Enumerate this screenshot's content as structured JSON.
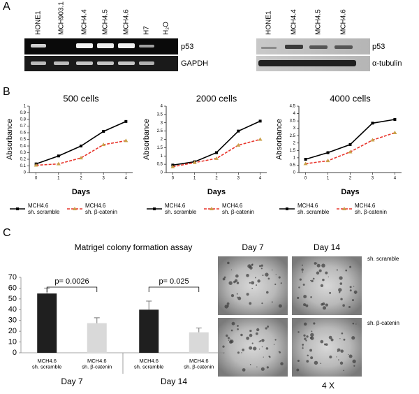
{
  "panel_labels": {
    "a": "A",
    "b": "B",
    "c": "C"
  },
  "gels": {
    "left": {
      "lanes": [
        "HONE1",
        "MCH903.1",
        "MCH4.4",
        "MCH4.5",
        "MCH4.6",
        "H7",
        "H₂O"
      ],
      "rows": [
        "p53",
        "GAPDH"
      ]
    },
    "right": {
      "lanes": [
        "HONE1",
        "MCH4.4",
        "MCH4.5",
        "MCH4.6"
      ],
      "rows": [
        "p53",
        "α-tubulin"
      ]
    }
  },
  "chart_data": [
    {
      "type": "line",
      "title": "500 cells",
      "xlabel": "Days",
      "ylabel": "Absorbance",
      "x": [
        0,
        1,
        2,
        3,
        4
      ],
      "xlim": [
        -0.3,
        4.3
      ],
      "xticks": [
        0,
        1,
        2,
        3,
        4
      ],
      "ylim": [
        0,
        1
      ],
      "yticks": [
        0,
        0.1,
        0.2,
        0.3,
        0.4,
        0.5,
        0.6,
        0.7,
        0.8,
        0.9,
        1
      ],
      "series": [
        {
          "name": "MCH4.6\nsh. scramble",
          "color": "#000000",
          "marker": "square",
          "marker_color": "#000000",
          "dash": false,
          "values": [
            0.13,
            0.25,
            0.4,
            0.62,
            0.77
          ]
        },
        {
          "name": "MCH4.6\nsh. β-catenin",
          "color": "#e8332a",
          "marker": "triangle",
          "marker_color": "#c9a24a",
          "dash": true,
          "values": [
            0.11,
            0.13,
            0.22,
            0.42,
            0.48
          ]
        }
      ]
    },
    {
      "type": "line",
      "title": "2000 cells",
      "xlabel": "Days",
      "ylabel": "Absorbance",
      "x": [
        0,
        1,
        2,
        3,
        4
      ],
      "xlim": [
        -0.3,
        4.3
      ],
      "xticks": [
        0,
        1,
        2,
        3,
        4
      ],
      "ylim": [
        0,
        4
      ],
      "yticks": [
        0,
        0.5,
        1,
        1.5,
        2,
        2.5,
        3,
        3.5,
        4
      ],
      "series": [
        {
          "name": "MCH4.6\nsh. scramble",
          "color": "#000000",
          "marker": "square",
          "marker_color": "#000000",
          "dash": false,
          "values": [
            0.45,
            0.65,
            1.2,
            2.5,
            3.1
          ]
        },
        {
          "name": "MCH4.6\nsh. β-catenin",
          "color": "#e8332a",
          "marker": "triangle",
          "marker_color": "#c9a24a",
          "dash": true,
          "values": [
            0.35,
            0.6,
            0.85,
            1.65,
            2.0
          ]
        }
      ]
    },
    {
      "type": "line",
      "title": "4000 cells",
      "xlabel": "Days",
      "ylabel": "Absorbance",
      "x": [
        0,
        1,
        2,
        3,
        4
      ],
      "xlim": [
        -0.3,
        4.3
      ],
      "xticks": [
        0,
        1,
        2,
        3,
        4
      ],
      "ylim": [
        0,
        4.5
      ],
      "yticks": [
        0,
        0.5,
        1,
        1.5,
        2,
        2.5,
        3,
        3.5,
        4,
        4.5
      ],
      "series": [
        {
          "name": "MCH4.6\nsh. scramble",
          "color": "#000000",
          "marker": "square",
          "marker_color": "#000000",
          "dash": false,
          "values": [
            0.9,
            1.35,
            1.9,
            3.35,
            3.6
          ]
        },
        {
          "name": "MCH4.6\nsh. β-catenin",
          "color": "#e8332a",
          "marker": "triangle",
          "marker_color": "#c9a24a",
          "dash": true,
          "values": [
            0.6,
            0.8,
            1.4,
            2.2,
            2.7
          ]
        }
      ]
    },
    {
      "type": "bar",
      "title": "Matrigel colony formation assay",
      "categories": [
        "Day 7",
        "Day 14"
      ],
      "ylim": [
        0,
        70
      ],
      "yticks": [
        0,
        10,
        20,
        30,
        40,
        50,
        60,
        70
      ],
      "series": [
        {
          "name": "MCH4.6\nsh. scramble",
          "color": "#1f1f1f",
          "values": [
            55,
            40
          ],
          "errors": [
            5,
            8
          ]
        },
        {
          "name": "MCH4.6\nsh. β-catenin",
          "color": "#d9d9d9",
          "values": [
            27.5,
            19
          ],
          "errors": [
            5,
            4
          ]
        }
      ],
      "annotations": [
        "p= 0.0026",
        "p= 0.025"
      ]
    }
  ],
  "micrographs": {
    "columns": [
      "Day 7",
      "Day 14"
    ],
    "rows": [
      "sh. scramble",
      "sh. β-catenin"
    ],
    "magnification": "4 X"
  }
}
